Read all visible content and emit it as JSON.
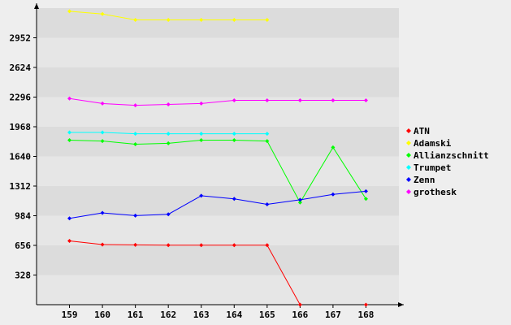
{
  "chart_data": {
    "type": "line",
    "title": "",
    "xlabel": "",
    "ylabel": "",
    "grid": "horizontal bands",
    "legend_position": "right",
    "background_color": "#eeeeee",
    "band_colors": [
      "#e6e6e6",
      "#dcdcdc"
    ],
    "axis_color": "#000000",
    "xlim": [
      158,
      169
    ],
    "ylim": [
      0,
      3280
    ],
    "x": [
      159,
      160,
      161,
      162,
      163,
      164,
      165,
      166,
      167,
      168
    ],
    "x_tick_labels": [
      "159",
      "160",
      "161",
      "162",
      "163",
      "164",
      "165",
      "166",
      "167",
      "168"
    ],
    "y_ticks": [
      328,
      656,
      984,
      1312,
      1640,
      1968,
      2296,
      2624,
      2952
    ],
    "y_tick_labels": [
      "328",
      "656",
      "984",
      "1312",
      "1640",
      "1968",
      "2296",
      "2624",
      "2952"
    ],
    "series": [
      {
        "name": "ATN",
        "color": "#ff0000",
        "values": [
          705,
          665,
          662,
          658,
          658,
          658,
          658,
          0,
          null,
          0
        ]
      },
      {
        "name": "Adamski",
        "color": "#ffff00",
        "values": [
          3245,
          3215,
          3150,
          3150,
          3150,
          3150,
          3150,
          null,
          null,
          null
        ]
      },
      {
        "name": "Allianzschnitt",
        "color": "#00ff00",
        "values": [
          1820,
          1810,
          1775,
          1785,
          1820,
          1820,
          1810,
          1130,
          1740,
          1170
        ]
      },
      {
        "name": "Trumpet",
        "color": "#00ffff",
        "values": [
          1905,
          1905,
          1890,
          1890,
          1890,
          1890,
          1890,
          null,
          null,
          null
        ]
      },
      {
        "name": "Zenn",
        "color": "#0000ff",
        "values": [
          955,
          1015,
          985,
          1000,
          1205,
          1170,
          1110,
          1160,
          1220,
          1255
        ]
      },
      {
        "name": "grothesk",
        "color": "#ff00ff",
        "values": [
          2280,
          2225,
          2205,
          2215,
          2225,
          2260,
          2260,
          2260,
          2260,
          2260
        ]
      }
    ]
  }
}
